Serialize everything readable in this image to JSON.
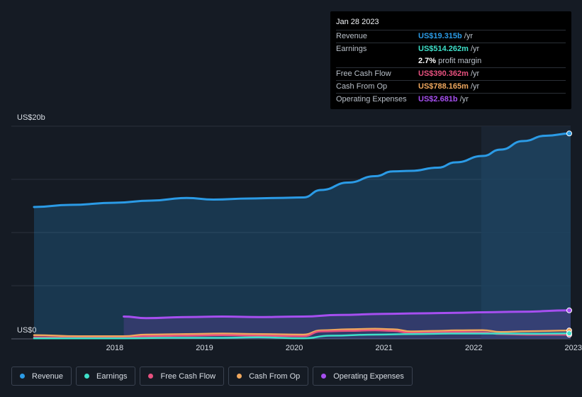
{
  "tooltip": {
    "date": "Jan 28 2023",
    "rows": [
      {
        "label": "Revenue",
        "value": "US$19.315b",
        "unit": "/yr",
        "color": "#2b9be6"
      },
      {
        "label": "Earnings",
        "value": "US$514.262m",
        "unit": "/yr",
        "color": "#3ee0c9"
      },
      {
        "label": "",
        "value": "2.7%",
        "unit": "profit margin",
        "color": "#ffffff"
      },
      {
        "label": "Free Cash Flow",
        "value": "US$390.362m",
        "unit": "/yr",
        "color": "#e8517f"
      },
      {
        "label": "Cash From Op",
        "value": "US$788.165m",
        "unit": "/yr",
        "color": "#f0a85e"
      },
      {
        "label": "Operating Expenses",
        "value": "US$2.681b",
        "unit": "/yr",
        "color": "#a64ff0"
      }
    ]
  },
  "legend": [
    {
      "label": "Revenue",
      "color": "#2b9be6"
    },
    {
      "label": "Earnings",
      "color": "#3ee0c9"
    },
    {
      "label": "Free Cash Flow",
      "color": "#e8517f"
    },
    {
      "label": "Cash From Op",
      "color": "#f0a85e"
    },
    {
      "label": "Operating Expenses",
      "color": "#a64ff0"
    }
  ],
  "chart_data": {
    "type": "area",
    "y_unit_labels": {
      "top": "US$20b",
      "bottom": "US$0"
    },
    "ylim": [
      0,
      20
    ],
    "xlim": [
      2017.1,
      2023.08
    ],
    "x_ticks": [
      {
        "label": "2018",
        "x": 2018.0
      },
      {
        "label": "2019",
        "x": 2019.0
      },
      {
        "label": "2020",
        "x": 2020.0
      },
      {
        "label": "2021",
        "x": 2021.0
      },
      {
        "label": "2022",
        "x": 2022.0
      },
      {
        "label": "2023",
        "x": 2023.0
      }
    ],
    "series": [
      {
        "name": "Revenue",
        "color": "#2b9be6",
        "area": true,
        "points": [
          [
            2017.1,
            12.4
          ],
          [
            2017.5,
            12.6
          ],
          [
            2018.0,
            12.8
          ],
          [
            2018.4,
            13.0
          ],
          [
            2018.8,
            13.25
          ],
          [
            2019.1,
            13.1
          ],
          [
            2019.5,
            13.2
          ],
          [
            2019.8,
            13.25
          ],
          [
            2020.1,
            13.3
          ],
          [
            2020.3,
            14.0
          ],
          [
            2020.6,
            14.7
          ],
          [
            2020.9,
            15.3
          ],
          [
            2021.1,
            15.75
          ],
          [
            2021.3,
            15.8
          ],
          [
            2021.6,
            16.1
          ],
          [
            2021.8,
            16.6
          ],
          [
            2022.1,
            17.2
          ],
          [
            2022.3,
            17.8
          ],
          [
            2022.55,
            18.6
          ],
          [
            2022.8,
            19.1
          ],
          [
            2023.08,
            19.315
          ]
        ]
      },
      {
        "name": "Operating Expenses",
        "color": "#a64ff0",
        "area": true,
        "points": [
          [
            2018.1,
            2.1
          ],
          [
            2018.35,
            1.95
          ],
          [
            2018.8,
            2.05
          ],
          [
            2019.2,
            2.1
          ],
          [
            2019.6,
            2.05
          ],
          [
            2020.1,
            2.1
          ],
          [
            2020.5,
            2.25
          ],
          [
            2021.0,
            2.35
          ],
          [
            2021.4,
            2.4
          ],
          [
            2021.8,
            2.45
          ],
          [
            2022.1,
            2.5
          ],
          [
            2022.5,
            2.55
          ],
          [
            2023.08,
            2.681
          ]
        ]
      },
      {
        "name": "Cash From Op",
        "color": "#f0a85e",
        "area": false,
        "points": [
          [
            2017.1,
            0.35
          ],
          [
            2017.6,
            0.25
          ],
          [
            2018.1,
            0.25
          ],
          [
            2018.35,
            0.4
          ],
          [
            2018.8,
            0.45
          ],
          [
            2019.2,
            0.5
          ],
          [
            2019.6,
            0.45
          ],
          [
            2020.1,
            0.4
          ],
          [
            2020.3,
            0.8
          ],
          [
            2020.6,
            0.9
          ],
          [
            2020.9,
            0.95
          ],
          [
            2021.1,
            0.9
          ],
          [
            2021.3,
            0.7
          ],
          [
            2021.6,
            0.75
          ],
          [
            2021.8,
            0.8
          ],
          [
            2022.1,
            0.82
          ],
          [
            2022.3,
            0.65
          ],
          [
            2022.6,
            0.72
          ],
          [
            2023.08,
            0.788
          ]
        ]
      },
      {
        "name": "Free Cash Flow",
        "color": "#e8517f",
        "area": false,
        "points": [
          [
            2017.1,
            0.15
          ],
          [
            2017.6,
            0.1
          ],
          [
            2018.1,
            0.1
          ],
          [
            2018.35,
            0.25
          ],
          [
            2018.8,
            0.3
          ],
          [
            2019.2,
            0.35
          ],
          [
            2019.6,
            0.3
          ],
          [
            2020.1,
            0.25
          ],
          [
            2020.3,
            0.7
          ],
          [
            2020.6,
            0.75
          ],
          [
            2020.9,
            0.8
          ],
          [
            2021.1,
            0.75
          ],
          [
            2021.3,
            0.55
          ],
          [
            2021.6,
            0.6
          ],
          [
            2021.8,
            0.65
          ],
          [
            2022.1,
            0.62
          ],
          [
            2022.3,
            0.45
          ],
          [
            2022.6,
            0.4
          ],
          [
            2023.08,
            0.39
          ]
        ]
      },
      {
        "name": "Earnings",
        "color": "#3ee0c9",
        "area": false,
        "points": [
          [
            2017.1,
            0.05
          ],
          [
            2018.1,
            0.05
          ],
          [
            2018.6,
            0.1
          ],
          [
            2019.2,
            0.1
          ],
          [
            2019.6,
            0.15
          ],
          [
            2020.1,
            0.05
          ],
          [
            2020.4,
            0.3
          ],
          [
            2020.9,
            0.4
          ],
          [
            2021.3,
            0.45
          ],
          [
            2021.8,
            0.5
          ],
          [
            2022.2,
            0.5
          ],
          [
            2022.6,
            0.48
          ],
          [
            2023.08,
            0.514
          ]
        ]
      }
    ]
  }
}
